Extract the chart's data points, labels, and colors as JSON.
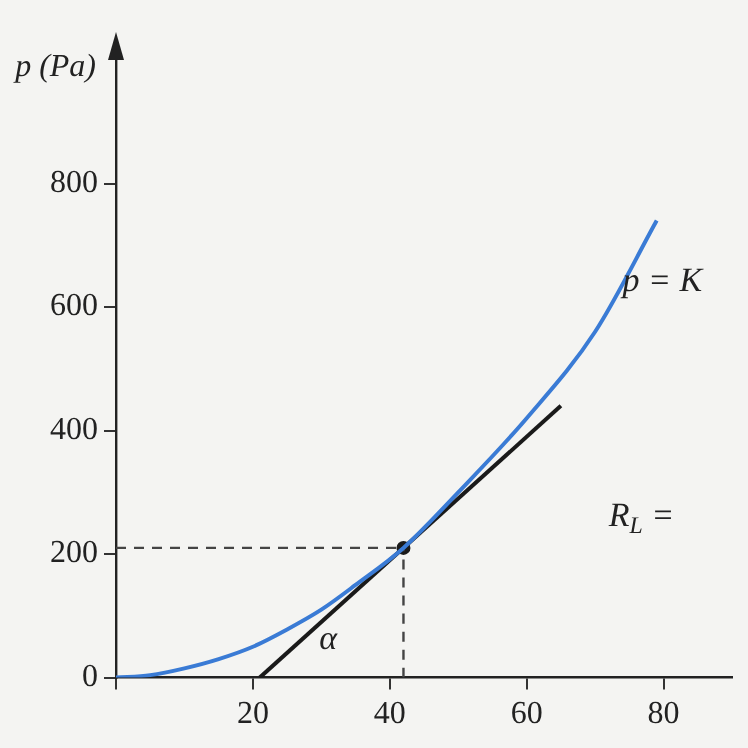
{
  "chart_data": {
    "type": "line",
    "ylabel": "p (Pa)",
    "xlim": [
      0,
      90
    ],
    "ylim": [
      0,
      1000
    ],
    "xticks": [
      {
        "value": 0,
        "label": null
      },
      20,
      40,
      60,
      80
    ],
    "yticks": [
      0,
      200,
      400,
      600,
      800
    ],
    "grid": false,
    "legend": false,
    "series": [
      {
        "color": "#3a7bd5",
        "x": [
          0,
          5,
          10,
          15,
          20,
          25,
          30,
          35,
          42,
          50,
          60,
          70,
          79
        ],
        "values": [
          0,
          4,
          15,
          30,
          50,
          78,
          110,
          150,
          210,
          300,
          420,
          560,
          740
        ]
      },
      {
        "color": "#1a1a1a",
        "x": [
          21,
          65
        ],
        "values": [
          0,
          440
        ]
      },
      {
        "color": "#444444",
        "line_style": "dashed",
        "x": [
          0,
          42
        ],
        "values": [
          210,
          210
        ]
      },
      {
        "color": "#444444",
        "line_style": "dashed",
        "x": [
          42,
          42
        ],
        "values": [
          0,
          210
        ]
      },
      {
        "type": "scatter",
        "color": "#1a1a1a",
        "x": [
          42
        ],
        "values": [
          210
        ]
      }
    ],
    "annotations": [
      {
        "text": "p = K",
        "x": 74,
        "y": 640
      },
      "α",
      "R$_{L}$ ="
    ]
  }
}
